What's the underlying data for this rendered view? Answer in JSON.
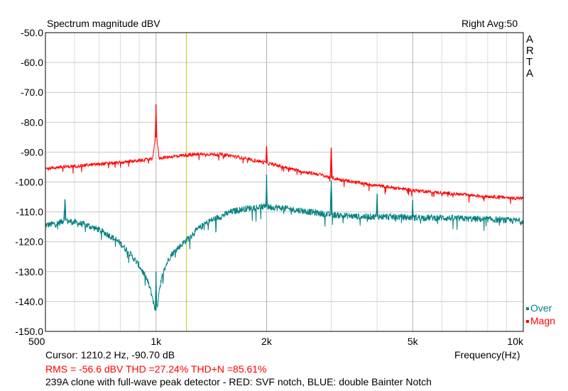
{
  "header": {
    "title": "Spectrum magnitude dBV",
    "channel_info": "Right  Avg:50",
    "brand_letters": [
      "A",
      "R",
      "T",
      "A"
    ]
  },
  "footer": {
    "cursor": "Cursor:  1210.2 Hz, -90.70 dB",
    "measurements": "RMS =  -56.6 dBV   THD =27.24%   THD+N =85.61%",
    "caption": "239A clone with full-wave peak detector - RED: SVF notch, BLUE: double Bainter Notch"
  },
  "chart_data": {
    "type": "line",
    "title": "Spectrum magnitude dBV",
    "xlabel": "Frequency(Hz)",
    "ylabel": "",
    "xscale": "log",
    "xlim": [
      500,
      10000
    ],
    "ylim": [
      -150,
      -50
    ],
    "grid": true,
    "x_ticks": [
      {
        "value": 500,
        "label": "500"
      },
      {
        "value": 1000,
        "label": "1k"
      },
      {
        "value": 2000,
        "label": "2k"
      },
      {
        "value": 5000,
        "label": "5k"
      },
      {
        "value": 10000,
        "label": "10k"
      }
    ],
    "y_ticks": [
      {
        "value": -50,
        "label": "-50.0"
      },
      {
        "value": -60,
        "label": "-60.0"
      },
      {
        "value": -70,
        "label": "-70.0"
      },
      {
        "value": -80,
        "label": "-80.0"
      },
      {
        "value": -90,
        "label": "-90.0"
      },
      {
        "value": -100,
        "label": "-100.0"
      },
      {
        "value": -110,
        "label": "-110.0"
      },
      {
        "value": -120,
        "label": "-120.0"
      },
      {
        "value": -130,
        "label": "-130.0"
      },
      {
        "value": -140,
        "label": "-140.0"
      },
      {
        "value": -150,
        "label": "-150.0"
      }
    ],
    "cursor_x": 1210.2,
    "legend_position": "bottom-right",
    "series": [
      {
        "name": "Magn",
        "color": "#ff0000",
        "x": [
          500,
          550,
          600,
          700,
          800,
          900,
          980,
          995,
          1000,
          1005,
          1020,
          1100,
          1200,
          1300,
          1400,
          1500,
          1600,
          1700,
          1800,
          1900,
          1990,
          2000,
          2010,
          2200,
          2500,
          2800,
          2980,
          3000,
          3020,
          3200,
          3600,
          4000,
          4500,
          5000,
          5500,
          6000,
          6500,
          7000,
          7500,
          8000,
          9000,
          10000
        ],
        "y": [
          -95.5,
          -95,
          -94.7,
          -94,
          -93.5,
          -92.8,
          -92.3,
          -85,
          -74,
          -85,
          -92,
          -91.5,
          -91,
          -90.7,
          -90.7,
          -90.8,
          -91.2,
          -91.8,
          -92.5,
          -93,
          -93.5,
          -88,
          -93.7,
          -94.8,
          -96.5,
          -97.5,
          -98.5,
          -88.5,
          -98.7,
          -99.3,
          -100.3,
          -101.2,
          -102,
          -102.7,
          -103.2,
          -103.6,
          -104,
          -104.3,
          -104.6,
          -104.8,
          -105.2,
          -105.5
        ]
      },
      {
        "name": "Over",
        "color": "#008080",
        "x": [
          500,
          540,
          560,
          565,
          570,
          600,
          650,
          700,
          750,
          800,
          850,
          900,
          940,
          960,
          980,
          990,
          995,
          1000,
          1005,
          1010,
          1020,
          1040,
          1060,
          1080,
          1100,
          1150,
          1200,
          1300,
          1400,
          1500,
          1600,
          1700,
          1800,
          1900,
          1990,
          2000,
          2010,
          2200,
          2500,
          2800,
          2980,
          3000,
          3020,
          3500,
          3980,
          4000,
          4020,
          4500,
          4980,
          5000,
          5020,
          6000,
          7000,
          8000,
          9000,
          10000
        ],
        "y": [
          -114.5,
          -113.8,
          -113,
          -106,
          -113,
          -113.5,
          -114.5,
          -116,
          -118,
          -120.5,
          -124,
          -128,
          -132,
          -135,
          -139,
          -142,
          -143,
          -130,
          -143,
          -141,
          -136,
          -131.5,
          -128.5,
          -126,
          -124.3,
          -122,
          -119.8,
          -115.8,
          -113,
          -111.5,
          -110,
          -109.2,
          -108.7,
          -108.4,
          -108.3,
          -97.5,
          -108.3,
          -108.7,
          -109.6,
          -110.5,
          -111,
          -99.5,
          -111,
          -111.5,
          -111.6,
          -104,
          -111.6,
          -111.7,
          -111.9,
          -106,
          -111.9,
          -112,
          -112.3,
          -112.5,
          -112.8,
          -113
        ]
      }
    ]
  }
}
